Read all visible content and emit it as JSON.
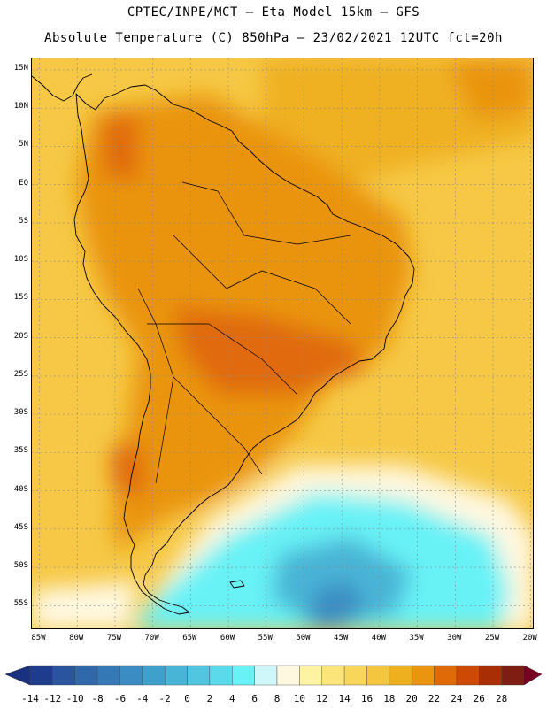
{
  "header": {
    "title_line1": "CPTEC/INPE/MCT –  Eta Model 15km – GFS",
    "title_line2": "Absolute Temperature (C) 850hPa – 23/02/2021 12UTC fct=20h"
  },
  "map": {
    "lat_labels": [
      "15N",
      "10N",
      "5N",
      "EQ",
      "5S",
      "10S",
      "15S",
      "20S",
      "25S",
      "30S",
      "35S",
      "40S",
      "45S",
      "50S",
      "55S"
    ],
    "lat_values": [
      15,
      10,
      5,
      0,
      -5,
      -10,
      -15,
      -20,
      -25,
      -30,
      -35,
      -40,
      -45,
      -50,
      -55
    ],
    "lon_labels": [
      "85W",
      "80W",
      "75W",
      "70W",
      "65W",
      "60W",
      "55W",
      "50W",
      "45W",
      "40W",
      "35W",
      "30W",
      "25W",
      "20W"
    ],
    "lon_values": [
      -85,
      -80,
      -75,
      -70,
      -65,
      -60,
      -55,
      -50,
      -45,
      -40,
      -35,
      -30,
      -25,
      -20
    ],
    "colors": {
      "land_line": "#000000",
      "grid": "#8a8a8a"
    }
  },
  "colorbar": {
    "labels": [
      "-14",
      "-12",
      "-10",
      "-8",
      "-6",
      "-4",
      "-2",
      "0",
      "2",
      "4",
      "6",
      "8",
      "10",
      "12",
      "14",
      "16",
      "18",
      "20",
      "22",
      "24",
      "26",
      "28"
    ],
    "colors": [
      "#1f3c8c",
      "#2a559e",
      "#3168ac",
      "#3479b6",
      "#3a8cc2",
      "#3fa0cb",
      "#48b4d6",
      "#52c6e0",
      "#5adaeb",
      "#68f2f6",
      "#cff6f9",
      "#fff8e0",
      "#fdf3a0",
      "#fbe57a",
      "#f8d65a",
      "#f4c640",
      "#efb020",
      "#ea9410",
      "#e06a08",
      "#cc4a05",
      "#a82e05",
      "#7e1d12"
    ],
    "under_color": "#1a3080",
    "over_color": "#780020"
  }
}
